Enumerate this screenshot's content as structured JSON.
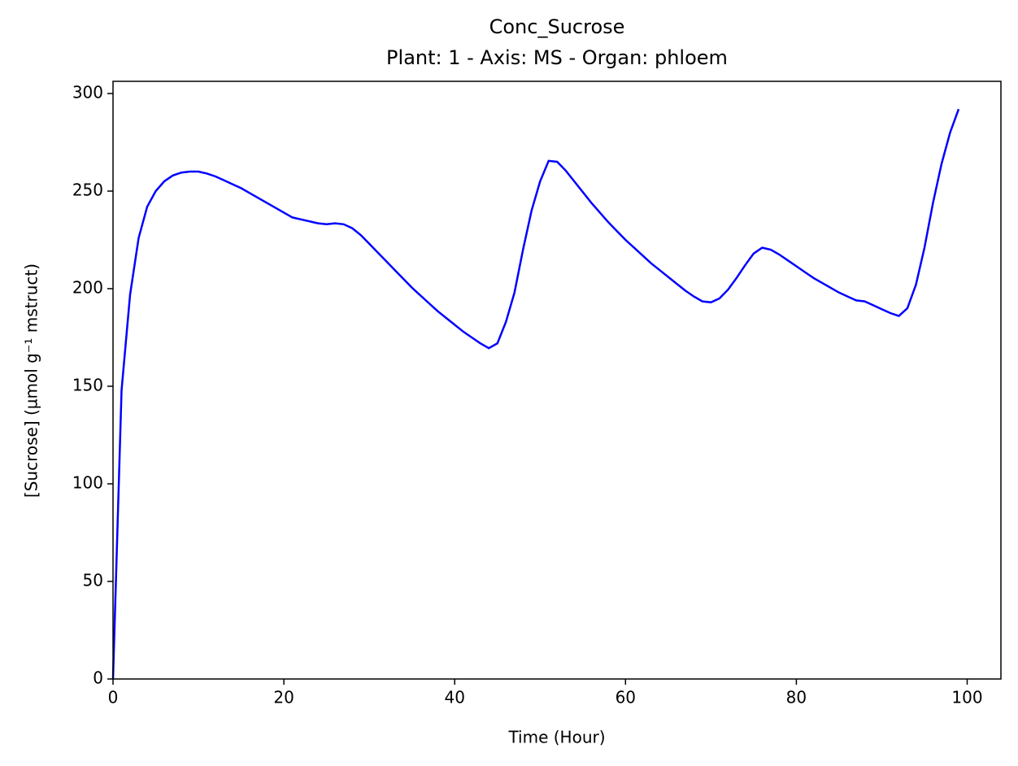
{
  "chart_data": {
    "type": "line",
    "title": "Conc_Sucrose",
    "subtitle": "Plant: 1 - Axis: MS - Organ: phloem",
    "x_label": "Time (Hour)",
    "y_label": "[Sucrose] (µmol g⁻¹ mstruct)",
    "x": [
      0,
      1,
      2,
      3,
      4,
      5,
      6,
      7,
      8,
      9,
      10,
      11,
      12,
      13,
      14,
      15,
      16,
      17,
      18,
      19,
      20,
      21,
      22,
      23,
      24,
      25,
      26,
      27,
      28,
      29,
      30,
      31,
      32,
      33,
      34,
      35,
      36,
      37,
      38,
      39,
      40,
      41,
      42,
      43,
      44,
      45,
      46,
      47,
      48,
      49,
      50,
      51,
      52,
      53,
      54,
      55,
      56,
      57,
      58,
      59,
      60,
      61,
      62,
      63,
      64,
      65,
      66,
      67,
      68,
      69,
      70,
      71,
      72,
      73,
      74,
      75,
      76,
      77,
      78,
      79,
      80,
      81,
      82,
      83,
      84,
      85,
      86,
      87,
      88,
      89,
      90,
      91,
      92,
      93,
      94,
      95,
      96,
      97,
      98,
      99
    ],
    "series": [
      {
        "color": "#0000ff",
        "values": [
          0,
          148,
          197,
          226,
          242,
          250,
          255,
          258,
          259.5,
          260,
          260,
          259,
          257.5,
          255.5,
          253.5,
          251.5,
          249,
          246.5,
          244,
          241.5,
          239,
          236.5,
          235.5,
          234.5,
          233.5,
          233,
          233.5,
          233,
          231,
          227.5,
          223,
          218.5,
          214,
          209.5,
          205,
          200.5,
          196.5,
          192.5,
          188.5,
          185,
          181.5,
          178,
          175,
          172,
          169.5,
          172,
          183,
          198,
          220,
          240,
          255,
          265.5,
          265,
          260.5,
          255,
          249.5,
          244,
          239,
          234,
          229.5,
          225,
          221,
          217,
          213,
          209.5,
          206,
          202.5,
          199,
          196,
          193.5,
          193,
          195,
          199.5,
          205.5,
          212,
          218,
          221,
          220,
          217.5,
          214.5,
          211.5,
          208.5,
          205.5,
          203,
          200.5,
          198,
          196,
          194,
          193.5,
          191.5,
          189.5,
          187.5,
          186,
          190,
          202,
          221,
          244,
          264,
          280,
          292
        ]
      }
    ],
    "xlim": [
      0,
      103.95
    ],
    "xticks": [
      0,
      20,
      40,
      60,
      80,
      100
    ],
    "ylim": [
      0,
      306.25
    ],
    "yticks": [
      0,
      50,
      100,
      150,
      200,
      250,
      300
    ]
  }
}
